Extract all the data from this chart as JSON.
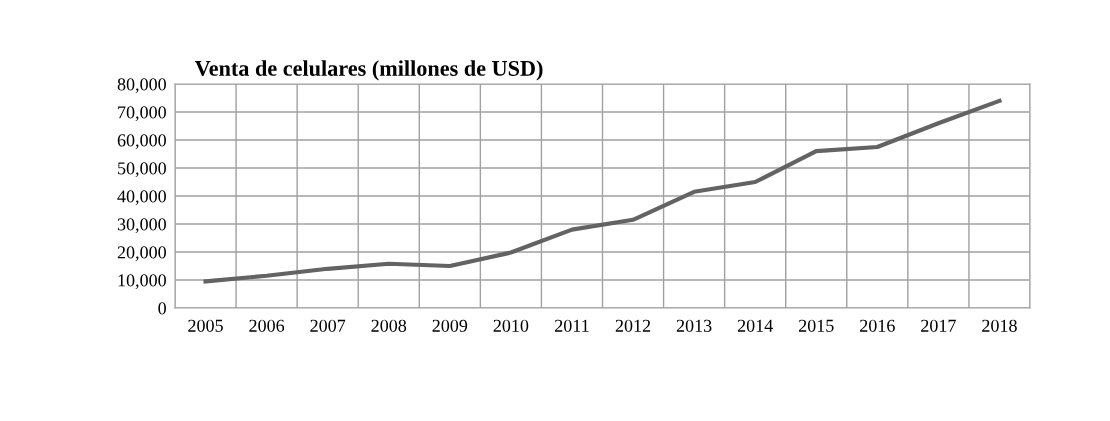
{
  "chart_data": {
    "type": "line",
    "title": "Venta de celulares (millones de USD)",
    "categories": [
      "2005",
      "2006",
      "2007",
      "2008",
      "2009",
      "2010",
      "2011",
      "2012",
      "2013",
      "2014",
      "2015",
      "2016",
      "2017",
      "2018"
    ],
    "series": [
      {
        "color": "#636363",
        "values": [
          9500,
          11500,
          14000,
          15800,
          15000,
          19800,
          28000,
          31500,
          41500,
          45000,
          56000,
          57500,
          66000,
          74000
        ]
      }
    ],
    "ylim": [
      0,
      80000
    ],
    "yticks": [
      {
        "value": 0,
        "label": "0"
      },
      {
        "value": 10000,
        "label": "10,000"
      },
      {
        "value": 20000,
        "label": "20,000"
      },
      {
        "value": 30000,
        "label": "30,000"
      },
      {
        "value": 40000,
        "label": "40,000"
      },
      {
        "value": 50000,
        "label": "50,000"
      },
      {
        "value": 60000,
        "label": "60,000"
      },
      {
        "value": 70000,
        "label": "70,000"
      },
      {
        "value": 80000,
        "label": "80,000"
      }
    ],
    "grid": true,
    "line_style": "solid",
    "marker": "none"
  }
}
